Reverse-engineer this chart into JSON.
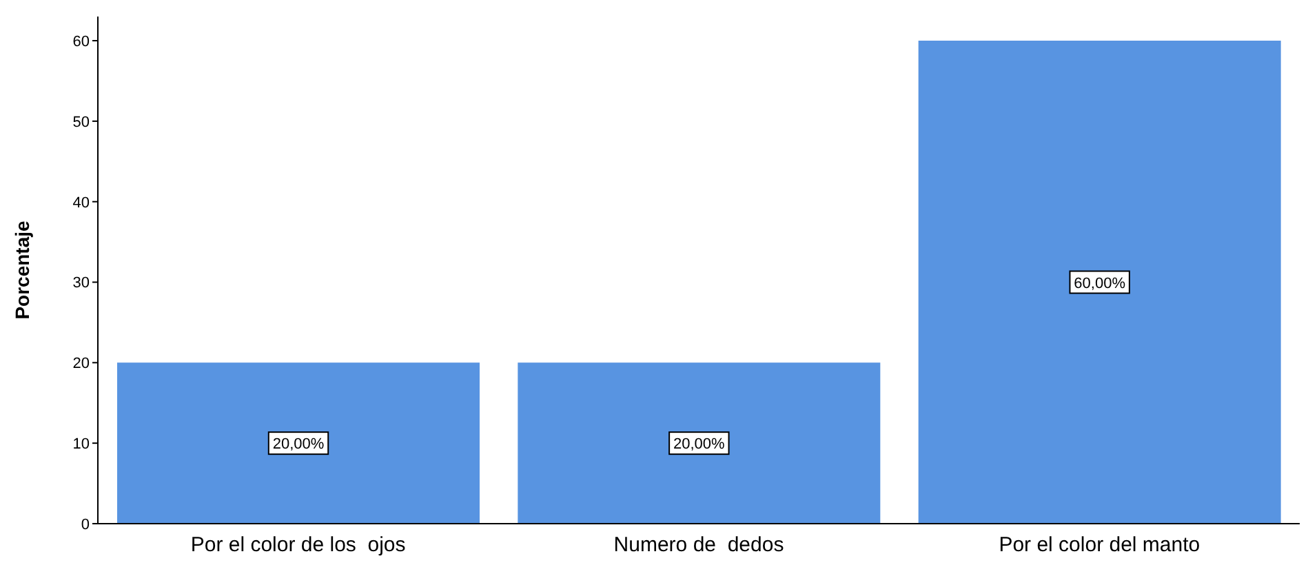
{
  "chart_data": {
    "type": "bar",
    "ylabel": "Porcentaje",
    "categories": [
      "Por el color de los  ojos",
      "Numero de  dedos",
      "Por el color del manto"
    ],
    "values": [
      20,
      20,
      60
    ],
    "value_labels": [
      "20,00%",
      "20,00%",
      "60,00%"
    ],
    "color": "#5894e1",
    "ylim": [
      0,
      63
    ],
    "yticks": [
      0,
      10,
      20,
      30,
      40,
      50,
      60
    ],
    "grid": false,
    "legend": false
  }
}
